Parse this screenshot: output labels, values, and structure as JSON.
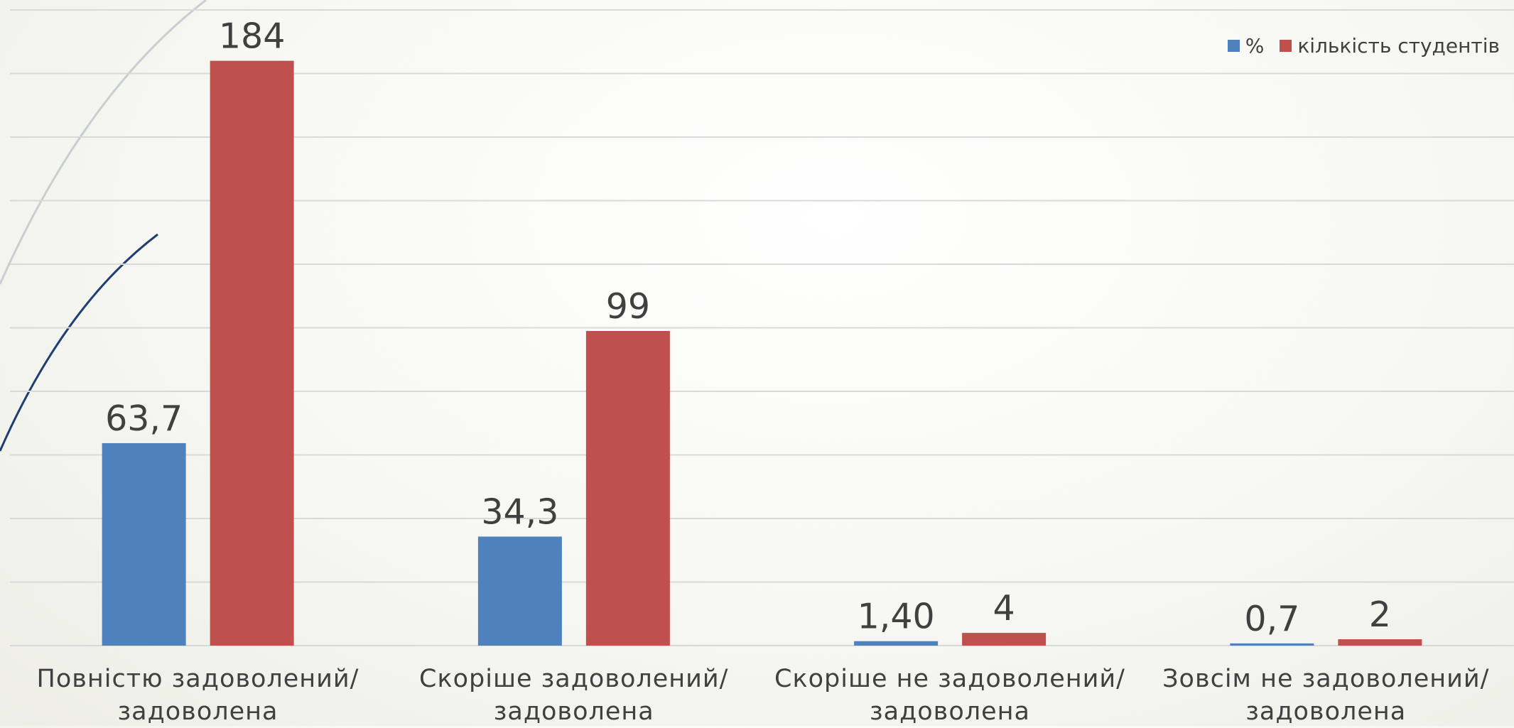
{
  "chart_data": {
    "type": "bar",
    "categories": [
      "Повністю задоволений/задоволена",
      "Скоріше задоволений/задоволена",
      "Скоріше не задоволений/задоволена",
      "Зовсім не задоволений/задоволена"
    ],
    "series": [
      {
        "name": "%",
        "color": "#4f81bd",
        "values": [
          63.7,
          34.3,
          1.4,
          0.7
        ],
        "value_labels": [
          "63,7",
          "34,3",
          "1,40",
          "0,7"
        ]
      },
      {
        "name": "кількість студентів",
        "color": "#c0504d",
        "values": [
          184,
          99,
          4,
          2
        ]
      }
    ],
    "ylim": [
      0,
      200
    ],
    "yticks": [
      0,
      20,
      40,
      60,
      80,
      100,
      120,
      140,
      160,
      180,
      200
    ],
    "grid": true,
    "legend": "top-right"
  }
}
